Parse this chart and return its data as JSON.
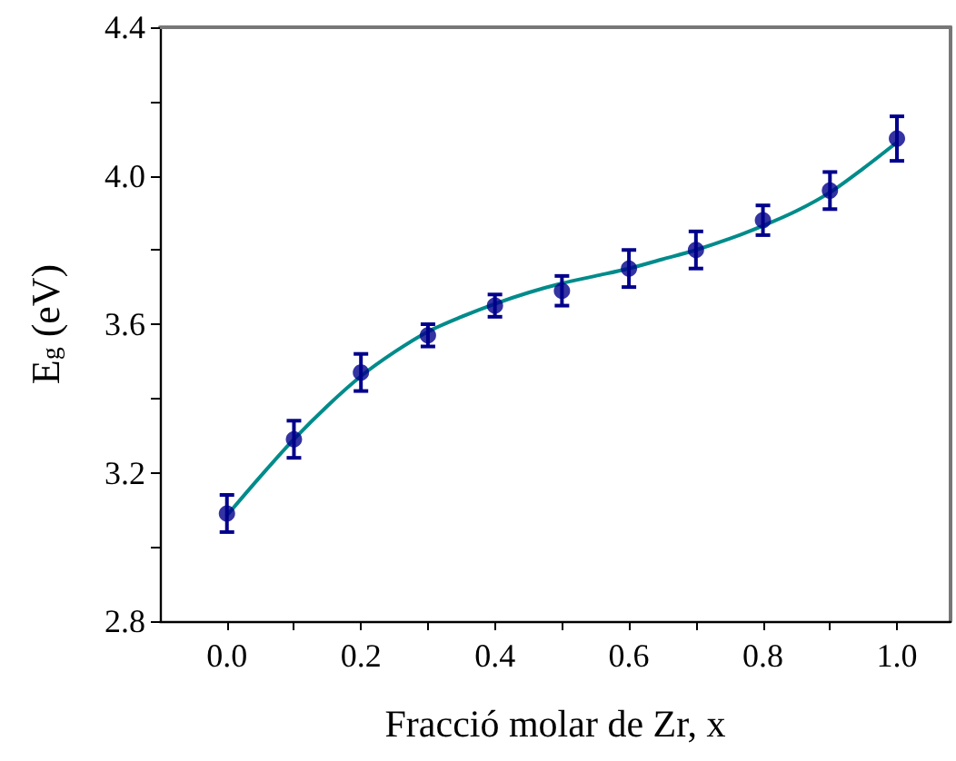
{
  "chart_data": {
    "type": "scatter",
    "xlabel": "Fracció molar de Zr, x",
    "ylabel": "E$_{g}$ (eV)",
    "xlim": [
      -0.1,
      1.08
    ],
    "ylim": [
      2.8,
      4.4
    ],
    "xticks": [
      {
        "value": 0,
        "label": "0.0"
      },
      {
        "value": 0.1,
        "label": null
      },
      {
        "value": 0.2,
        "label": "0.2"
      },
      {
        "value": 0.3,
        "label": null
      },
      {
        "value": 0.4,
        "label": "0.4"
      },
      {
        "value": 0.5,
        "label": null
      },
      {
        "value": 0.6,
        "label": "0.6"
      },
      {
        "value": 0.7,
        "label": null
      },
      {
        "value": 0.8,
        "label": "0.8"
      },
      {
        "value": 0.9,
        "label": null
      },
      {
        "value": 1,
        "label": "1.0"
      }
    ],
    "yticks": [
      {
        "value": 2.8,
        "label": "2.8"
      },
      {
        "value": 3,
        "label": null
      },
      {
        "value": 3.2,
        "label": "3.2"
      },
      {
        "value": 3.4,
        "label": null
      },
      {
        "value": 3.6,
        "label": "3.6"
      },
      {
        "value": 3.8,
        "label": null
      },
      {
        "value": 4,
        "label": "4.0"
      },
      {
        "value": 4.2,
        "label": null
      },
      {
        "value": 4.4,
        "label": "4.4"
      }
    ],
    "grid": false,
    "series": [
      {
        "type": "line",
        "color": "#008b8b",
        "line_style": "solid",
        "marker": "none",
        "x": [
          0,
          0.05,
          0.1,
          0.15,
          0.2,
          0.25,
          0.3,
          0.35,
          0.4,
          0.45,
          0.5,
          0.55,
          0.6,
          0.65,
          0.7,
          0.75,
          0.8,
          0.85,
          0.9,
          0.95,
          1.0
        ],
        "values": [
          3.085,
          3.19,
          3.29,
          3.38,
          3.46,
          3.525,
          3.58,
          3.62,
          3.655,
          3.685,
          3.71,
          3.73,
          3.75,
          3.775,
          3.8,
          3.83,
          3.865,
          3.905,
          3.955,
          4.02,
          4.09
        ]
      },
      {
        "color": "#00008b",
        "marker": "circle",
        "x": [
          0,
          0.1,
          0.2,
          0.3,
          0.4,
          0.5,
          0.6,
          0.7,
          0.8,
          0.9,
          1.0
        ],
        "values": [
          3.09,
          3.29,
          3.47,
          3.57,
          3.65,
          3.69,
          3.75,
          3.8,
          3.88,
          3.96,
          4.1
        ],
        "errors": [
          0.05,
          0.05,
          0.05,
          0.03,
          0.03,
          0.04,
          0.05,
          0.05,
          0.04,
          0.05,
          0.06
        ]
      }
    ]
  }
}
